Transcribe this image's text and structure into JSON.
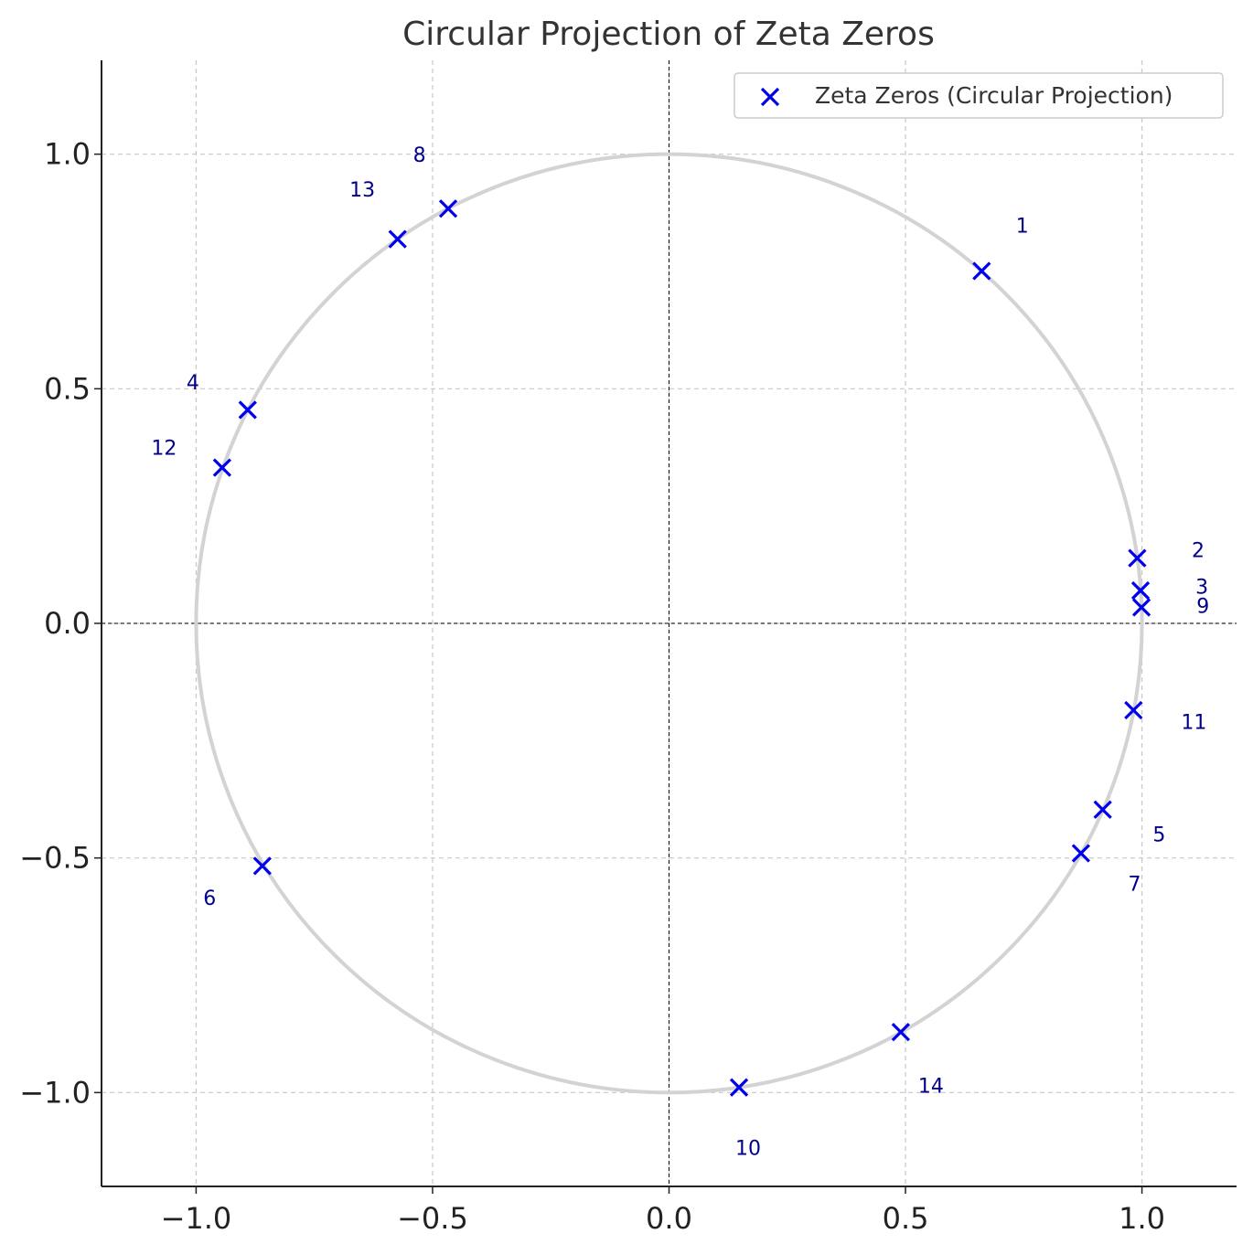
{
  "chart_data": {
    "type": "scatter",
    "title": "Circular Projection of Zeta Zeros",
    "xlabel": "",
    "ylabel": "",
    "xlim": [
      -1.2,
      1.2
    ],
    "ylim": [
      -1.2,
      1.2
    ],
    "x_ticks": [
      -1.0,
      -0.5,
      0.0,
      0.5,
      1.0
    ],
    "y_ticks": [
      -1.0,
      -0.5,
      0.0,
      0.5,
      1.0
    ],
    "x_tick_labels": [
      "−1.0",
      "−0.5",
      "0.0",
      "0.5",
      "1.0"
    ],
    "y_tick_labels": [
      "−1.0",
      "−0.5",
      "0.0",
      "0.5",
      "1.0"
    ],
    "grid": true,
    "legend_position": "top-right",
    "reference_circle_radius": 1,
    "series": [
      {
        "name": "Zeta Zeros (Circular Projection)",
        "marker": "x",
        "color": "#0000ee",
        "points": [
          {
            "label": "1",
            "x": 0.661,
            "y": 0.751
          },
          {
            "label": "2",
            "x": 0.99,
            "y": 0.139
          },
          {
            "label": "3",
            "x": 0.997,
            "y": 0.07
          },
          {
            "label": "4",
            "x": -0.891,
            "y": 0.455
          },
          {
            "label": "5",
            "x": 0.917,
            "y": -0.397
          },
          {
            "label": "6",
            "x": -0.86,
            "y": -0.517
          },
          {
            "label": "7",
            "x": 0.871,
            "y": -0.49
          },
          {
            "label": "8",
            "x": -0.467,
            "y": 0.884
          },
          {
            "label": "9",
            "x": 0.999,
            "y": 0.034
          },
          {
            "label": "10",
            "x": 0.148,
            "y": -0.989
          },
          {
            "label": "11",
            "x": 0.982,
            "y": -0.185
          },
          {
            "label": "12",
            "x": -0.945,
            "y": 0.332
          },
          {
            "label": "13",
            "x": -0.574,
            "y": 0.819
          },
          {
            "label": "14",
            "x": 0.49,
            "y": -0.871
          }
        ]
      }
    ]
  },
  "colors": {
    "marker": "#0000ee",
    "label": "#00008b",
    "circle": "#d3d3d3",
    "grid": "#c8c8c8",
    "axis": "#222222"
  }
}
